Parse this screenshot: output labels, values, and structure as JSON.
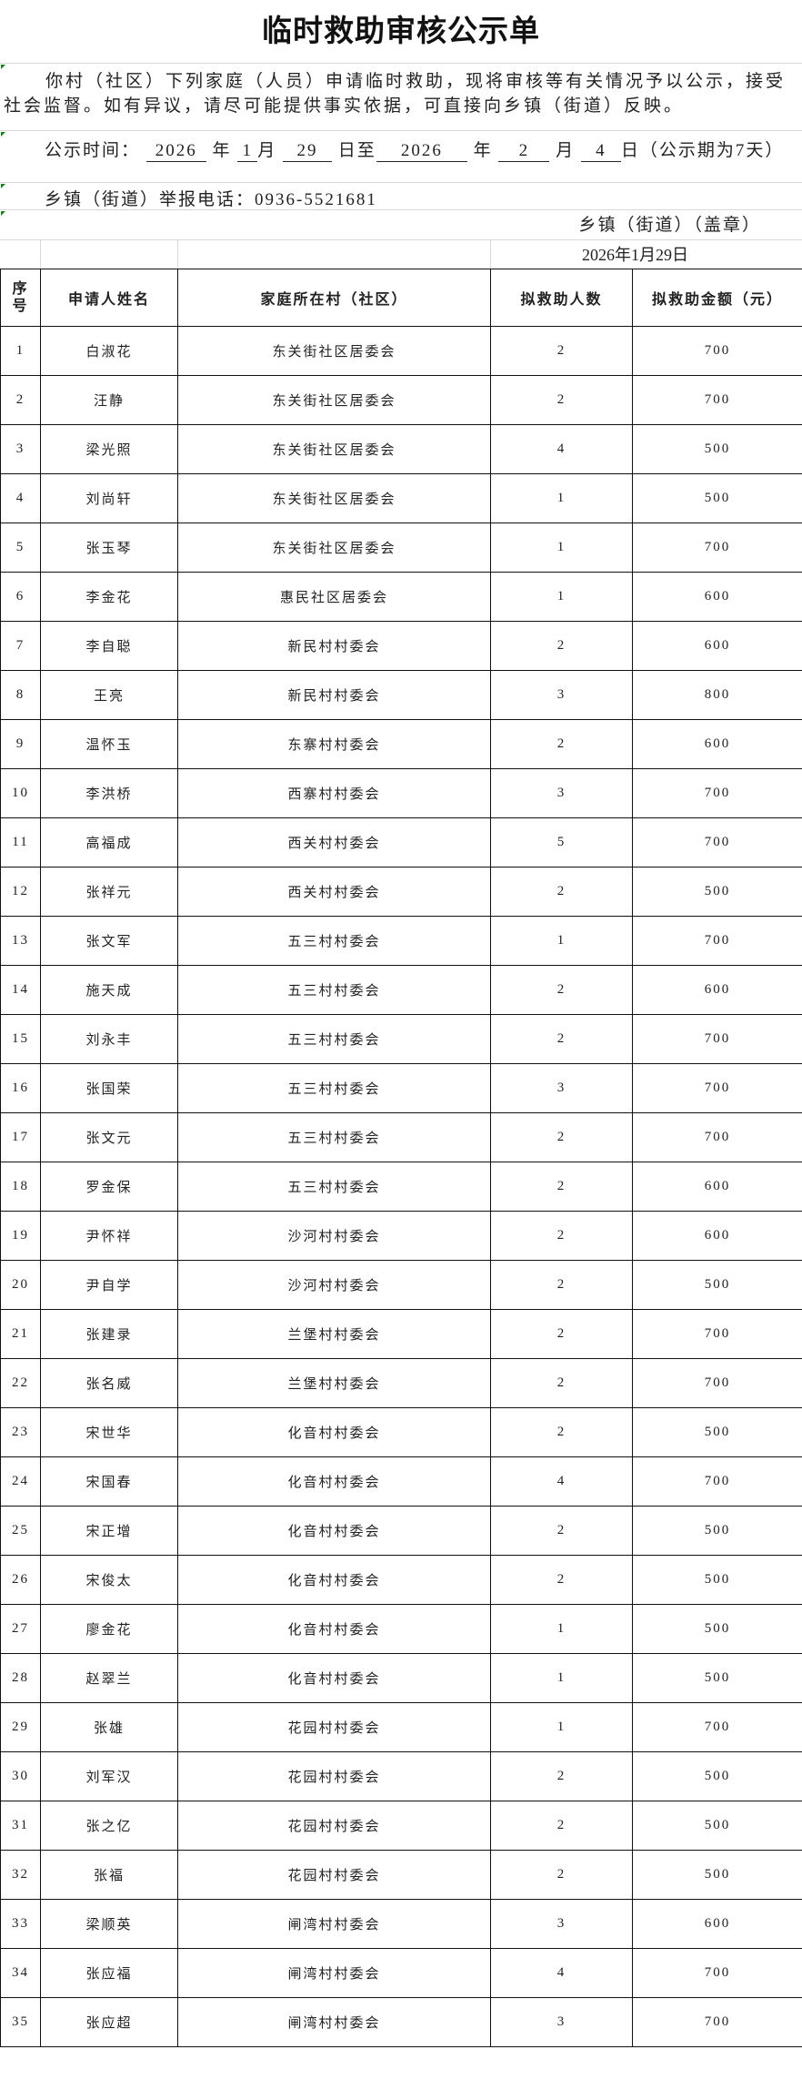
{
  "title": "临时救助审核公示单",
  "notice": {
    "paragraph": "你村（社区）下列家庭（人员）申请临时救助，现将审核等有关情况予以公示，接受社会监督。如有异议，请尽可能提供事实依据，可直接向乡镇（街道）反映。",
    "time_label": "公示时间：",
    "start_year": "2026",
    "year_char": "年",
    "start_month": "1",
    "month_char": "月",
    "start_day": "29",
    "day_to": "日至",
    "end_year": "2026",
    "end_month": "2",
    "end_day": "4",
    "period": "日（公示期为7天）",
    "phone": "乡镇（街道）举报电话：0936-5521681",
    "seal": "乡镇（街道）（盖章）",
    "date": "2026年1月29日"
  },
  "table": {
    "headers": [
      "序号",
      "申请人姓名",
      "家庭所在村（社区）",
      "拟救助人数",
      "拟救助金额（元）"
    ],
    "rows": [
      [
        "1",
        "白淑花",
        "东关街社区居委会",
        "2",
        "700"
      ],
      [
        "2",
        "汪静",
        "东关街社区居委会",
        "2",
        "700"
      ],
      [
        "3",
        "梁光照",
        "东关街社区居委会",
        "4",
        "500"
      ],
      [
        "4",
        "刘尚轩",
        "东关街社区居委会",
        "1",
        "500"
      ],
      [
        "5",
        "张玉琴",
        "东关街社区居委会",
        "1",
        "700"
      ],
      [
        "6",
        "李金花",
        "惠民社区居委会",
        "1",
        "600"
      ],
      [
        "7",
        "李自聪",
        "新民村村委会",
        "2",
        "600"
      ],
      [
        "8",
        "王亮",
        "新民村村委会",
        "3",
        "800"
      ],
      [
        "9",
        "温怀玉",
        "东寨村村委会",
        "2",
        "600"
      ],
      [
        "10",
        "李洪桥",
        "西寨村村委会",
        "3",
        "700"
      ],
      [
        "11",
        "高福成",
        "西关村村委会",
        "5",
        "700"
      ],
      [
        "12",
        "张祥元",
        "西关村村委会",
        "2",
        "500"
      ],
      [
        "13",
        "张文军",
        "五三村村委会",
        "1",
        "700"
      ],
      [
        "14",
        "施天成",
        "五三村村委会",
        "2",
        "600"
      ],
      [
        "15",
        "刘永丰",
        "五三村村委会",
        "2",
        "700"
      ],
      [
        "16",
        "张国荣",
        "五三村村委会",
        "3",
        "700"
      ],
      [
        "17",
        "张文元",
        "五三村村委会",
        "2",
        "700"
      ],
      [
        "18",
        "罗金保",
        "五三村村委会",
        "2",
        "600"
      ],
      [
        "19",
        "尹怀祥",
        "沙河村村委会",
        "2",
        "600"
      ],
      [
        "20",
        "尹自学",
        "沙河村村委会",
        "2",
        "500"
      ],
      [
        "21",
        "张建录",
        "兰堡村村委会",
        "2",
        "700"
      ],
      [
        "22",
        "张名威",
        "兰堡村村委会",
        "2",
        "700"
      ],
      [
        "23",
        "宋世华",
        "化音村村委会",
        "2",
        "500"
      ],
      [
        "24",
        "宋国春",
        "化音村村委会",
        "4",
        "700"
      ],
      [
        "25",
        "宋正增",
        "化音村村委会",
        "2",
        "500"
      ],
      [
        "26",
        "宋俊太",
        "化音村村委会",
        "2",
        "500"
      ],
      [
        "27",
        "廖金花",
        "化音村村委会",
        "1",
        "500"
      ],
      [
        "28",
        "赵翠兰",
        "化音村村委会",
        "1",
        "500"
      ],
      [
        "29",
        "张雄",
        "花园村村委会",
        "1",
        "700"
      ],
      [
        "30",
        "刘军汉",
        "花园村村委会",
        "2",
        "500"
      ],
      [
        "31",
        "张之亿",
        "花园村村委会",
        "2",
        "500"
      ],
      [
        "32",
        "张福",
        "花园村村委会",
        "2",
        "500"
      ],
      [
        "33",
        "梁顺英",
        "闸湾村村委会",
        "3",
        "600"
      ],
      [
        "34",
        "张应福",
        "闸湾村村委会",
        "4",
        "700"
      ],
      [
        "35",
        "张应超",
        "闸湾村村委会",
        "3",
        "700"
      ]
    ]
  },
  "colors": {
    "grid": "#111111",
    "light_grid": "#d8d8d8",
    "cell_marker": "#1a7f1a"
  }
}
